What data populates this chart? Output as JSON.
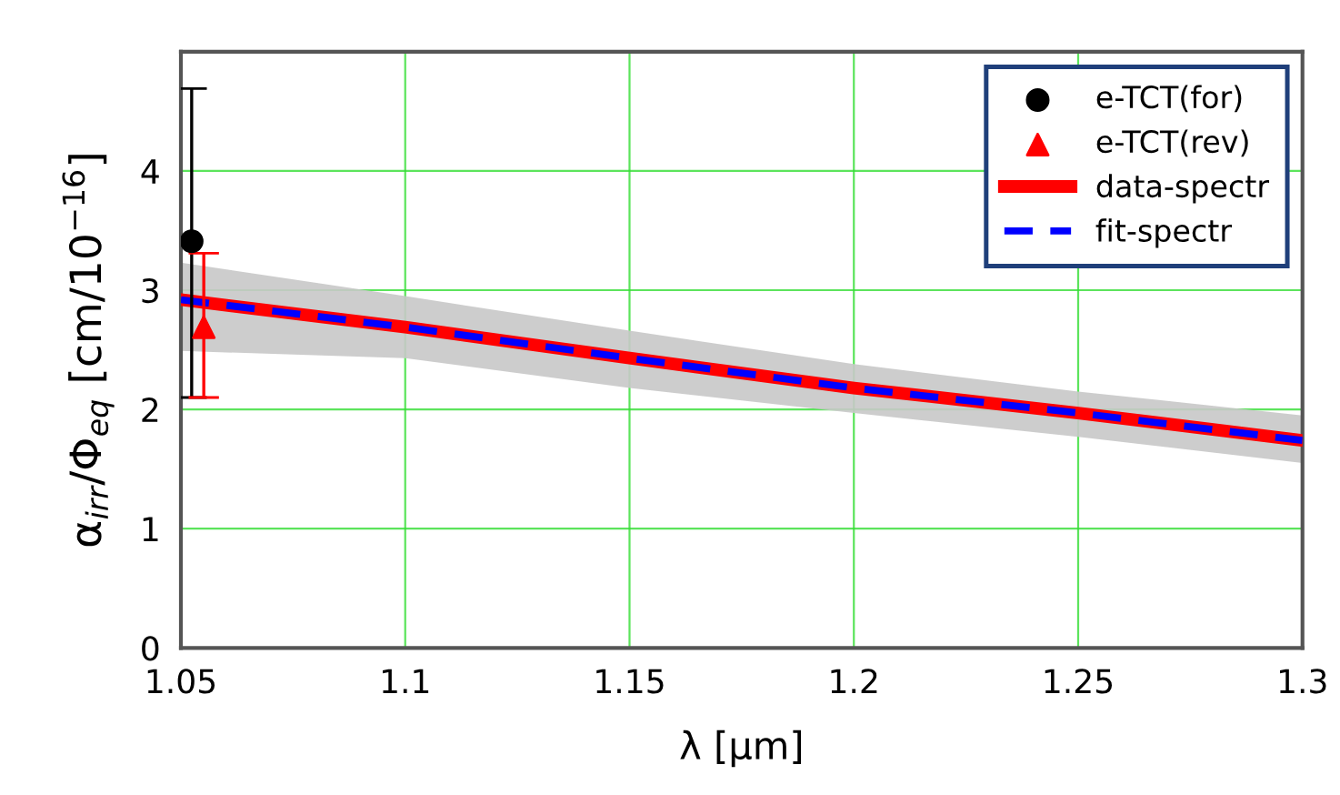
{
  "chart_data": {
    "type": "line",
    "xlabel": "λ [μm]",
    "ylabel": "α$_{irr}$/Φ$_{eq}$ [cm/10$^{−16}$]",
    "xlim": [
      1.05,
      1.3
    ],
    "xticks": [
      1.05,
      1.1,
      1.15,
      1.2,
      1.25,
      1.3
    ],
    "ylim": [
      0,
      5
    ],
    "yticks": [
      0,
      1,
      2,
      3,
      4
    ],
    "grid": true,
    "legend": "top right",
    "series": [
      {
        "name": "e-TCT(for)",
        "type": "scatter",
        "marker": "circle",
        "color": "#000000",
        "x": [
          1.0524
        ],
        "values": [
          3.41
        ],
        "errors": [
          [
            2.1,
            4.69
          ]
        ]
      },
      {
        "name": "e-TCT(rev)",
        "type": "scatter",
        "marker": "triangle",
        "color": "#ff0000",
        "x": [
          1.0551
        ],
        "values": [
          2.69
        ],
        "errors": [
          [
            2.1,
            3.31
          ]
        ]
      },
      {
        "name": "data-spectr",
        "line_style": "solid",
        "color": "#ff0000",
        "x": [
          1.05,
          1.1,
          1.15,
          1.2,
          1.25,
          1.3
        ],
        "values": [
          2.92,
          2.69,
          2.43,
          2.18,
          1.97,
          1.74
        ],
        "lower": [
          2.49,
          2.43,
          2.18,
          1.97,
          1.77,
          1.55
        ],
        "upper": [
          3.23,
          2.95,
          2.66,
          2.38,
          2.15,
          1.95
        ]
      },
      {
        "name": "fit-spectr",
        "line_style": "dashed",
        "color": "#0000ff",
        "x": [
          1.05,
          1.1,
          1.15,
          1.2,
          1.25,
          1.3
        ],
        "values": [
          2.92,
          2.69,
          2.43,
          2.18,
          1.97,
          1.74
        ]
      }
    ]
  }
}
